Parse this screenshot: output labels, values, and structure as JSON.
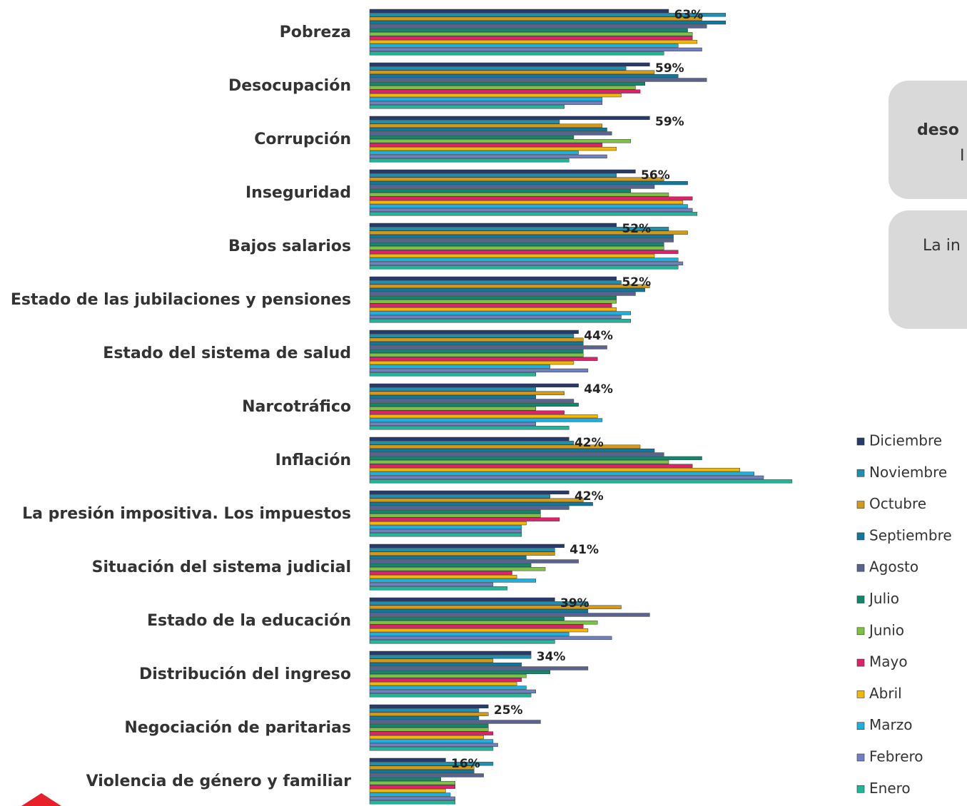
{
  "chart_data": {
    "type": "barh",
    "categories": [
      "Pobreza",
      "Desocupación",
      "Corrupción",
      "Inseguridad",
      "Bajos salarios",
      "Estado de las jubilaciones y pensiones",
      "Estado del sistema de salud",
      "Narcotráfico",
      "Inflación",
      "La presión impositiva. Los impuestos",
      "Situación del sistema judicial",
      "Estado de la educación",
      "Distribución del ingreso",
      "Negociación de paritarias",
      "Violencia de género y familiar"
    ],
    "series": [
      {
        "name": "Diciembre",
        "color": "#263a6b",
        "values": [
          63,
          59,
          59,
          56,
          52,
          52,
          44,
          44,
          42,
          42,
          41,
          39,
          34,
          25,
          16
        ],
        "value_labels": [
          "63%",
          "59%",
          "59%",
          "56%",
          "52%",
          "52%",
          "44%",
          "44%",
          "42%",
          "42%",
          "41%",
          "39%",
          "34%",
          "25%",
          "16%"
        ]
      },
      {
        "name": "Noviembre",
        "color": "#1f8fb0",
        "values": [
          75,
          54,
          40,
          52,
          63,
          53,
          43,
          35,
          43,
          38,
          39,
          46,
          34,
          23,
          26
        ]
      },
      {
        "name": "Octubre",
        "color": "#d49a12",
        "values": [
          70,
          60,
          49,
          62,
          67,
          59,
          45,
          41,
          57,
          45,
          39,
          53,
          26,
          25,
          22
        ]
      },
      {
        "name": "Septiembre",
        "color": "#10789c",
        "values": [
          75,
          65,
          50,
          67,
          64,
          58,
          45,
          35,
          60,
          47,
          33,
          46,
          32,
          23,
          22
        ]
      },
      {
        "name": "Agosto",
        "color": "#5a6390",
        "values": [
          71,
          71,
          51,
          60,
          64,
          56,
          50,
          43,
          62,
          42,
          44,
          59,
          46,
          36,
          24
        ]
      },
      {
        "name": "Julio",
        "color": "#13876e",
        "values": [
          67,
          58,
          43,
          55,
          62,
          52,
          45,
          44,
          70,
          36,
          34,
          41,
          38,
          25,
          15
        ]
      },
      {
        "name": "Junio",
        "color": "#7dc242",
        "values": [
          68,
          56,
          55,
          63,
          62,
          52,
          45,
          35,
          63,
          36,
          37,
          48,
          33,
          25,
          18
        ]
      },
      {
        "name": "Mayo",
        "color": "#e0206a",
        "values": [
          68,
          57,
          49,
          68,
          65,
          51,
          48,
          41,
          68,
          40,
          30,
          45,
          32,
          26,
          18
        ]
      },
      {
        "name": "Abril",
        "color": "#f5b800",
        "values": [
          69,
          53,
          52,
          66,
          60,
          52,
          43,
          48,
          78,
          33,
          31,
          46,
          31,
          24,
          16
        ]
      },
      {
        "name": "Marzo",
        "color": "#1ab0e0",
        "values": [
          65,
          49,
          44,
          67,
          65,
          55,
          38,
          49,
          81,
          32,
          35,
          42,
          33,
          26,
          17
        ]
      },
      {
        "name": "Febrero",
        "color": "#7080c0",
        "values": [
          70,
          49,
          50,
          68,
          66,
          53,
          46,
          35,
          83,
          32,
          26,
          51,
          35,
          27,
          18
        ]
      },
      {
        "name": "Enero",
        "color": "#22b59a",
        "values": [
          62,
          41,
          42,
          69,
          65,
          55,
          35,
          42,
          89,
          32,
          29,
          39,
          34,
          26,
          18
        ]
      }
    ]
  },
  "callouts": [
    "deso",
    "I",
    "La in"
  ]
}
